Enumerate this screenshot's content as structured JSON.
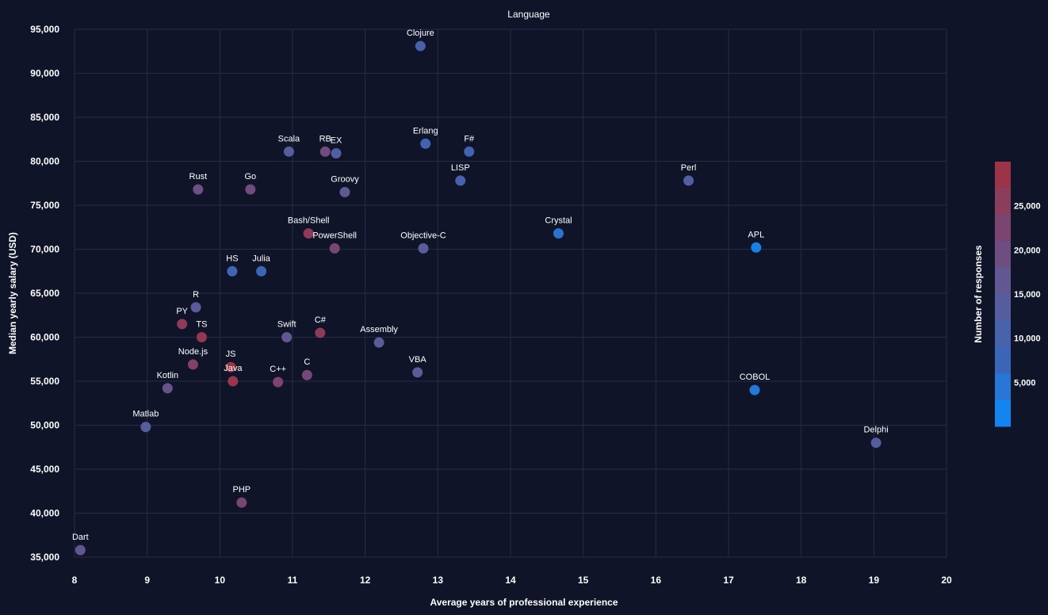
{
  "chart_data": {
    "type": "scatter",
    "title": "Language",
    "xlabel": "Average years of professional experience",
    "ylabel": "Median yearly salary (USD)",
    "xlim": [
      8,
      20
    ],
    "ylim": [
      35000,
      95000
    ],
    "x_ticks": [
      "8",
      "9",
      "10",
      "11",
      "12",
      "13",
      "14",
      "15",
      "16",
      "17",
      "18",
      "19",
      "20"
    ],
    "y_ticks": [
      "35,000",
      "40,000",
      "45,000",
      "50,000",
      "55,000",
      "60,000",
      "65,000",
      "70,000",
      "75,000",
      "80,000",
      "85,000",
      "90,000",
      "95,000"
    ],
    "grid": true,
    "colorbar": {
      "title": "Number of responses",
      "ticks": [
        "5,000",
        "10,000",
        "15,000",
        "20,000",
        "25,000"
      ],
      "tick_values": [
        5000,
        10000,
        15000,
        20000,
        25000
      ],
      "range": [
        0,
        30000
      ],
      "colors": [
        "#0a8cff",
        "#3b66b8",
        "#5b5b99",
        "#7a4570",
        "#a3303f"
      ]
    },
    "points": [
      {
        "label": "Clojure",
        "x": 12.76,
        "y": 93100,
        "responses": 11000
      },
      {
        "label": "Scala",
        "x": 10.95,
        "y": 81100,
        "responses": 14000
      },
      {
        "label": "RB",
        "x": 11.45,
        "y": 81100,
        "responses": 20000
      },
      {
        "label": "EX",
        "x": 11.6,
        "y": 80900,
        "responses": 12500
      },
      {
        "label": "Erlang",
        "x": 12.83,
        "y": 82000,
        "responses": 9000
      },
      {
        "label": "F#",
        "x": 13.43,
        "y": 81100,
        "responses": 9000
      },
      {
        "label": "LISP",
        "x": 13.31,
        "y": 77800,
        "responses": 10000
      },
      {
        "label": "Perl",
        "x": 16.45,
        "y": 77800,
        "responses": 13000
      },
      {
        "label": "Rust",
        "x": 9.7,
        "y": 76800,
        "responses": 19000
      },
      {
        "label": "Go",
        "x": 10.42,
        "y": 76800,
        "responses": 20000
      },
      {
        "label": "Groovy",
        "x": 11.72,
        "y": 76500,
        "responses": 16000
      },
      {
        "label": "Bash/Shell",
        "x": 11.22,
        "y": 71800,
        "responses": 26000
      },
      {
        "label": "PowerShell",
        "x": 11.58,
        "y": 70100,
        "responses": 22000
      },
      {
        "label": "Objective-C",
        "x": 12.8,
        "y": 70100,
        "responses": 15000
      },
      {
        "label": "Crystal",
        "x": 14.66,
        "y": 71800,
        "responses": 5000
      },
      {
        "label": "APL",
        "x": 17.38,
        "y": 70200,
        "responses": 2500
      },
      {
        "label": "HS",
        "x": 10.17,
        "y": 67500,
        "responses": 8500
      },
      {
        "label": "Julia",
        "x": 10.57,
        "y": 67500,
        "responses": 7500
      },
      {
        "label": "R",
        "x": 9.67,
        "y": 63400,
        "responses": 15000
      },
      {
        "label": "PY",
        "x": 9.48,
        "y": 61500,
        "responses": 26000
      },
      {
        "label": "TS",
        "x": 9.75,
        "y": 60000,
        "responses": 27000
      },
      {
        "label": "Swift",
        "x": 10.92,
        "y": 60000,
        "responses": 16500
      },
      {
        "label": "C#",
        "x": 11.38,
        "y": 60500,
        "responses": 26000
      },
      {
        "label": "Assembly",
        "x": 12.19,
        "y": 59400,
        "responses": 15000
      },
      {
        "label": "Node.js",
        "x": 9.63,
        "y": 56900,
        "responses": 24000
      },
      {
        "label": "JS",
        "x": 10.15,
        "y": 56600,
        "responses": 29000
      },
      {
        "label": "Java",
        "x": 10.18,
        "y": 55000,
        "responses": 28000
      },
      {
        "label": "C++",
        "x": 10.8,
        "y": 54900,
        "responses": 23000
      },
      {
        "label": "C",
        "x": 11.2,
        "y": 55700,
        "responses": 21000
      },
      {
        "label": "VBA",
        "x": 12.72,
        "y": 56000,
        "responses": 15000
      },
      {
        "label": "Kotlin",
        "x": 9.28,
        "y": 54200,
        "responses": 18000
      },
      {
        "label": "COBOL",
        "x": 17.36,
        "y": 54000,
        "responses": 4000
      },
      {
        "label": "Matlab",
        "x": 8.98,
        "y": 49800,
        "responses": 13500
      },
      {
        "label": "Delphi",
        "x": 19.03,
        "y": 48000,
        "responses": 13500
      },
      {
        "label": "PHP",
        "x": 10.3,
        "y": 41200,
        "responses": 22000
      },
      {
        "label": "Dart",
        "x": 8.08,
        "y": 35800,
        "responses": 17000
      }
    ]
  }
}
